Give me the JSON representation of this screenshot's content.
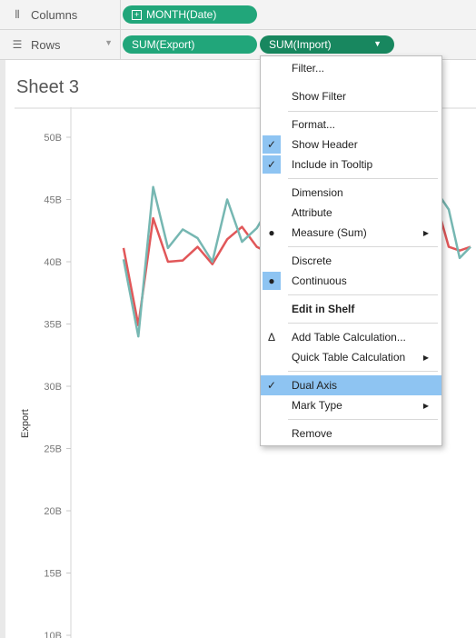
{
  "shelves": {
    "columns": {
      "label": "Columns",
      "pills": [
        "MONTH(Date)"
      ]
    },
    "rows": {
      "label": "Rows",
      "pills": [
        "SUM(Export)",
        "SUM(Import)"
      ]
    }
  },
  "sheet": {
    "title": "Sheet 3"
  },
  "menu": {
    "items": [
      {
        "label": "Filter..."
      },
      {
        "label": "Show Filter"
      },
      {
        "label": "Format..."
      },
      {
        "label": "Show Header",
        "checked": true
      },
      {
        "label": "Include in Tooltip",
        "checked": true
      },
      {
        "label": "Dimension"
      },
      {
        "label": "Attribute"
      },
      {
        "label": "Measure (Sum)",
        "radio": true,
        "submenu": true
      },
      {
        "label": "Discrete"
      },
      {
        "label": "Continuous",
        "radio": true
      },
      {
        "label": "Edit in Shelf"
      },
      {
        "label": "Add Table Calculation...",
        "icon": "delta-icon"
      },
      {
        "label": "Quick Table Calculation",
        "submenu": true
      },
      {
        "label": "Dual Axis",
        "checked": true,
        "highlighted": true
      },
      {
        "label": "Mark Type",
        "submenu": true
      },
      {
        "label": "Remove"
      }
    ]
  },
  "colors": {
    "export": "#e15759",
    "import": "#76b7b2",
    "pill": "#21a67a",
    "highlight": "#8ec4f2"
  },
  "chart_data": {
    "type": "line",
    "ylabel": "Export",
    "yticks": [
      "10B",
      "15B",
      "20B",
      "25B",
      "30B",
      "35B",
      "40B",
      "45B",
      "50B"
    ],
    "ylim": [
      10,
      50
    ],
    "series": [
      {
        "name": "SUM(Export)",
        "values": [
          41.1,
          34.9,
          43.5,
          40.0,
          40.1,
          41.2,
          39.8,
          41.8,
          42.8,
          41.2,
          40.6,
          42.9,
          38.7,
          41.9,
          43.4,
          42.2,
          39.8,
          41.1,
          42.8,
          44.3,
          41.2,
          40.9,
          41.2
        ],
        "missing_from": 18
      },
      {
        "name": "SUM(Import)",
        "values": [
          40.2,
          34.0,
          46.0,
          41.1,
          42.6,
          41.9,
          40.0,
          45.0,
          41.6,
          42.7,
          44.7,
          40.8,
          42.9,
          43.0,
          46.7,
          42.5,
          45.5,
          40.3,
          45.8,
          45.5,
          44.2,
          40.3,
          41.2
        ],
        "missing_from": 18
      }
    ]
  }
}
